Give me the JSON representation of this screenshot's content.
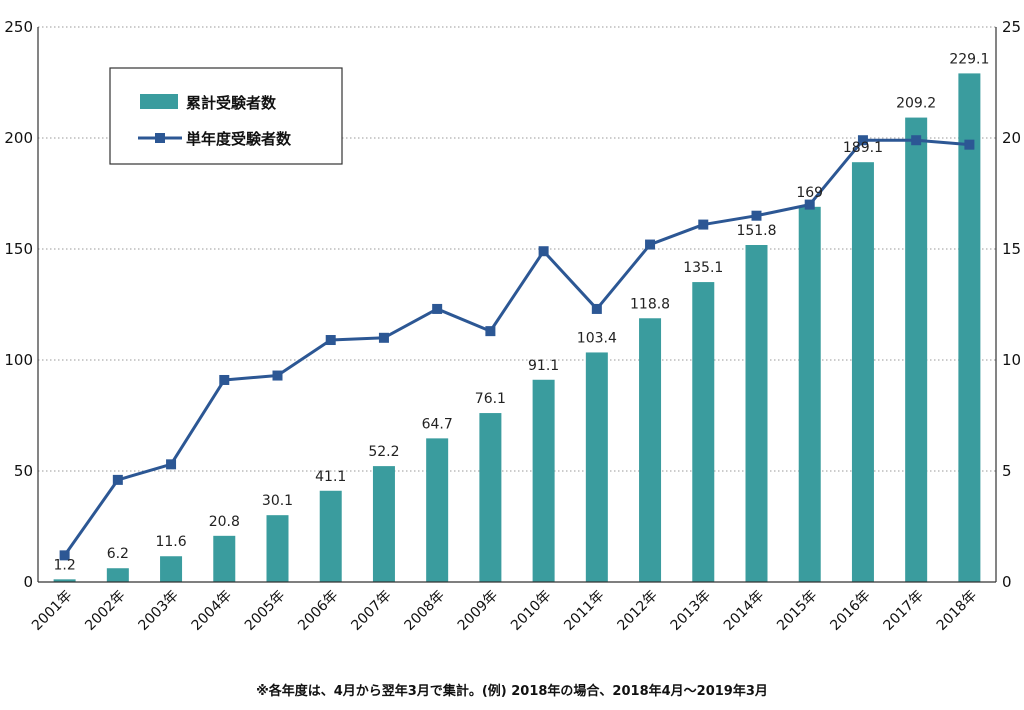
{
  "chart_data": {
    "type": "bar",
    "categories": [
      "2001年",
      "2002年",
      "2003年",
      "2004年",
      "2005年",
      "2006年",
      "2007年",
      "2008年",
      "2009年",
      "2010年",
      "2011年",
      "2012年",
      "2013年",
      "2014年",
      "2015年",
      "2016年",
      "2017年",
      "2018年"
    ],
    "series": [
      {
        "name": "累計受験者数",
        "type": "bar",
        "axis": "left",
        "values": [
          1.2,
          6.2,
          11.6,
          20.8,
          30.1,
          41.1,
          52.2,
          64.7,
          76.1,
          91.1,
          103.4,
          118.8,
          135.1,
          151.8,
          169,
          189.1,
          209.2,
          229.1
        ],
        "labels": [
          "1.2",
          "6.2",
          "11.6",
          "20.8",
          "30.1",
          "41.1",
          "52.2",
          "64.7",
          "76.1",
          "91.1",
          "103.4",
          "118.8",
          "135.1",
          "151.8",
          "169",
          "189.1",
          "209.2",
          "229.1"
        ],
        "color": "#3a9c9e"
      },
      {
        "name": "単年度受験者数",
        "type": "line",
        "axis": "right",
        "values": [
          1.2,
          4.6,
          5.3,
          9.1,
          9.3,
          10.9,
          11.0,
          12.3,
          11.3,
          14.9,
          12.3,
          15.2,
          16.1,
          16.5,
          17.0,
          19.9,
          19.9,
          19.7
        ],
        "color": "#2c5794"
      }
    ],
    "ylim_left": [
      0,
      250
    ],
    "ylim_right": [
      0,
      25
    ],
    "yticks_left": [
      "0",
      "50",
      "100",
      "150",
      "200",
      "250"
    ],
    "yticks_right": [
      "0",
      "5",
      "10",
      "15",
      "20",
      "25"
    ],
    "grid": "horizontal-dotted",
    "legend": "top-left",
    "note": "※各年度は、4月から翌年3月で集計。(例) 2018年の場合、2018年4月～2019年3月"
  }
}
